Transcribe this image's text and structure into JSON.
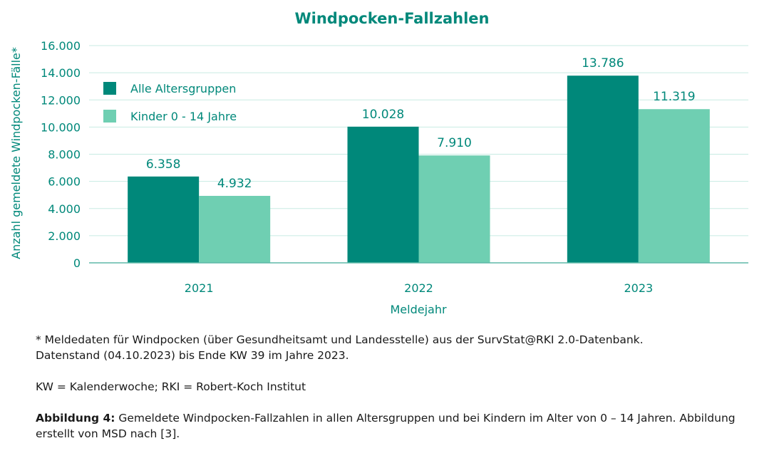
{
  "chart_data": {
    "type": "bar",
    "title": "Windpocken-Fallzahlen",
    "xlabel": "Meldejahr",
    "ylabel": "Anzahl gemeldete Windpocken-Fälle*",
    "categories": [
      "2021",
      "2022",
      "2023"
    ],
    "series": [
      {
        "name": "Alle Altersgruppen",
        "values": [
          6358,
          10028,
          13786
        ],
        "labels": [
          "6.358",
          "10.028",
          "13.786"
        ],
        "color": "#00887a"
      },
      {
        "name": "Kinder 0 - 14 Jahre",
        "values": [
          4932,
          7910,
          11319
        ],
        "labels": [
          "4.932",
          "7.910",
          "11.319"
        ],
        "color": "#6fcfb2"
      }
    ],
    "ylim": [
      0,
      16000
    ],
    "yticks": [
      0,
      2000,
      4000,
      6000,
      8000,
      10000,
      12000,
      14000,
      16000
    ],
    "ytick_labels": [
      "0",
      "2.000",
      "4.000",
      "6.000",
      "8.000",
      "10.000",
      "12.000",
      "14.000",
      "16.000"
    ],
    "grid": true,
    "legend_position": "top-left",
    "accent_color": "#00887a",
    "gridline_color": "#c8ebe3"
  },
  "notes": {
    "footnote_line1": "* Meldedaten für Windpocken (über Gesundheitsamt und Landesstelle) aus der SurvStat@RKI 2.0-Datenbank.",
    "footnote_line2": "Datenstand (04.10.2023) bis Ende KW 39 im Jahre 2023.",
    "abbreviations": "KW = Kalenderwoche; RKI = Robert-Koch Institut",
    "caption_bold": "Abbildung 4:",
    "caption_line1": " Gemeldete Windpocken-Fallzahlen in allen Altersgruppen und bei Kindern im Alter von 0 – 14 Jahren. Abbildung",
    "caption_line2": "erstellt von MSD nach [3]."
  }
}
